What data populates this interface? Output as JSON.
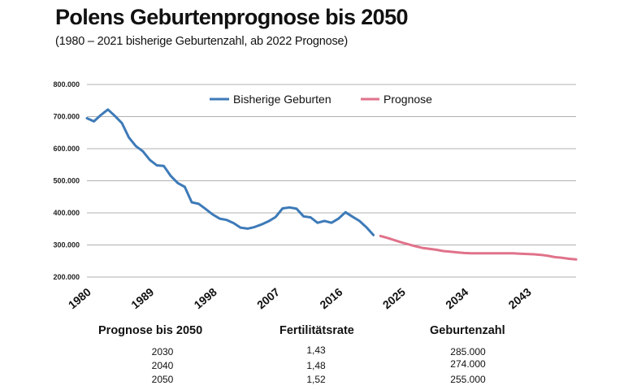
{
  "title": "Polens Geburtenprognose bis 2050",
  "subtitle": "(1980 – 2021 bisherige Geburtenzahl, ab 2022 Prognose)",
  "colors": {
    "historic": "#3d7ab8",
    "forecast": "#e0728a",
    "grid": "#b0b0b0",
    "text": "#111111"
  },
  "chart_data": {
    "type": "line",
    "title": "Polens Geburtenprognose bis 2050",
    "xlim": [
      1980,
      2050
    ],
    "ylim": [
      200000,
      800000
    ],
    "yticks": [
      "800.000",
      "700.000",
      "600.000",
      "500.000",
      "400.000",
      "300.000",
      "200.000"
    ],
    "ytick_values": [
      800000,
      700000,
      600000,
      500000,
      400000,
      300000,
      200000
    ],
    "xticks": [
      "1980",
      "1989",
      "1998",
      "2007",
      "2016",
      "2025",
      "2034",
      "2043"
    ],
    "xtick_values": [
      1980,
      1989,
      1998,
      2007,
      2016,
      2025,
      2034,
      2043
    ],
    "grid": true,
    "legend": "top-center",
    "series": [
      {
        "name": "Bisherige Geburten",
        "x": [
          1980,
          1981,
          1982,
          1983,
          1984,
          1985,
          1986,
          1987,
          1988,
          1989,
          1990,
          1991,
          1992,
          1993,
          1994,
          1995,
          1996,
          1997,
          1998,
          1999,
          2000,
          2001,
          2002,
          2003,
          2004,
          2005,
          2006,
          2007,
          2008,
          2009,
          2010,
          2011,
          2012,
          2013,
          2014,
          2015,
          2016,
          2017,
          2018,
          2019,
          2020,
          2021
        ],
        "values": [
          695000,
          685000,
          705000,
          722000,
          702000,
          680000,
          635000,
          608000,
          592000,
          565000,
          548000,
          546000,
          515000,
          493000,
          481000,
          433000,
          428000,
          412000,
          395000,
          382000,
          378000,
          368000,
          354000,
          351000,
          356000,
          364000,
          374000,
          387000,
          414000,
          417000,
          413000,
          389000,
          386000,
          369000,
          375000,
          369000,
          382000,
          402000,
          388000,
          375000,
          355000,
          331000
        ]
      },
      {
        "name": "Prognose",
        "x": [
          2022,
          2023,
          2024,
          2025,
          2026,
          2027,
          2028,
          2029,
          2030,
          2031,
          2032,
          2033,
          2034,
          2035,
          2036,
          2037,
          2038,
          2039,
          2040,
          2041,
          2042,
          2043,
          2044,
          2045,
          2046,
          2047,
          2048,
          2049,
          2050
        ],
        "values": [
          328000,
          322000,
          315000,
          308000,
          302000,
          296000,
          291000,
          288000,
          285000,
          281000,
          279000,
          277000,
          275000,
          274000,
          274000,
          274000,
          274000,
          274000,
          274000,
          274000,
          273000,
          272000,
          271000,
          269000,
          266000,
          262000,
          260000,
          257000,
          255000
        ]
      }
    ]
  },
  "table": {
    "headers": [
      "Prognose bis 2050",
      "Fertilitätsrate",
      "Geburtenzahl"
    ],
    "rows": [
      {
        "year": "2030",
        "rate": "1,43",
        "births": "285.000"
      },
      {
        "year": "2040",
        "rate": "1,48",
        "births": "274.000"
      },
      {
        "year": "2050",
        "rate": "1,52",
        "births": "255.000"
      }
    ]
  }
}
